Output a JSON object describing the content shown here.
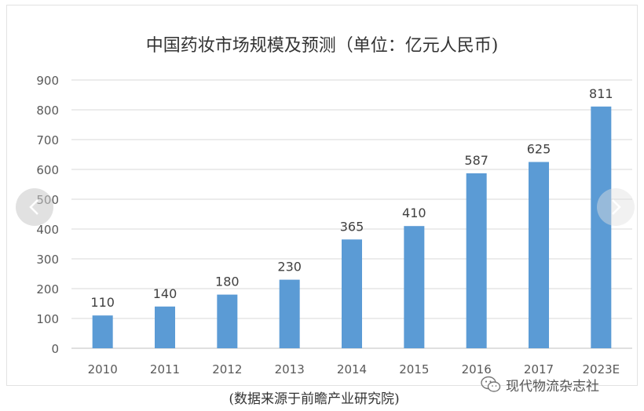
{
  "chart_data": {
    "type": "bar",
    "title": "中国药妆市场规模及预测（单位：亿元人民币)",
    "xlabel": "",
    "ylabel": "",
    "categories": [
      "2010",
      "2011",
      "2012",
      "2013",
      "2014",
      "2015",
      "2016",
      "2017",
      "2023E"
    ],
    "values": [
      110,
      140,
      180,
      230,
      365,
      410,
      587,
      625,
      811
    ],
    "ylim": [
      0,
      900
    ],
    "yticks": [
      0,
      100,
      200,
      300,
      400,
      500,
      600,
      700,
      800,
      900
    ],
    "grid": true,
    "legend": "none",
    "bar_color": "#5b9bd5"
  },
  "caption": "(数据来源于前瞻产业研究院)",
  "watermark": {
    "icon": "wechat-icon",
    "text": "现代物流杂志社"
  },
  "nav": {
    "prev_icon": "chevron-left-icon",
    "next_icon": "chevron-right-icon"
  }
}
